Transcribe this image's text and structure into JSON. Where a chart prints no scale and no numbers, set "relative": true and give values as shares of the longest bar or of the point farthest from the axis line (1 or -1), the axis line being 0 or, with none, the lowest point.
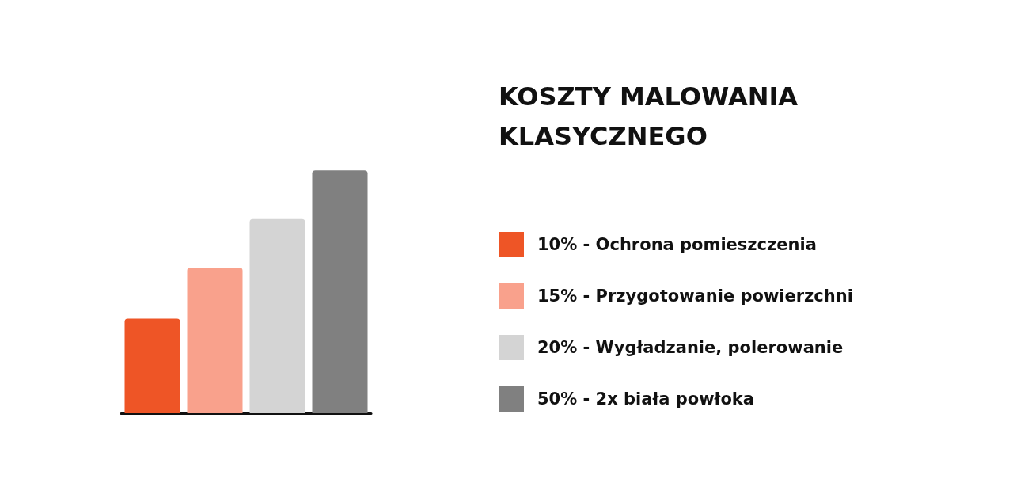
{
  "chart_data": {
    "type": "bar",
    "title": "KOSZTY MALOWANIA KLASYCZNEGO",
    "relative": true,
    "stacked": true,
    "categories": [
      null,
      null,
      null,
      null
    ],
    "series": [
      {
        "name": "10% - Ochrona pomieszczenia",
        "color": "#ee5526",
        "values": [
          0.39,
          null,
          null,
          null
        ]
      },
      {
        "name": "15% - Przygotowanie powierzchni",
        "color": "#f9a18c",
        "values": [
          null,
          0.6,
          null,
          null
        ]
      },
      {
        "name": "20% - Wygładzanie, polerowanie",
        "color": "#d4d4d4",
        "values": [
          null,
          null,
          0.8,
          null
        ]
      },
      {
        "name": "50% - 2x biała powłoka",
        "color": "#808080",
        "values": [
          null,
          null,
          null,
          1
        ]
      }
    ],
    "legend": "right"
  }
}
